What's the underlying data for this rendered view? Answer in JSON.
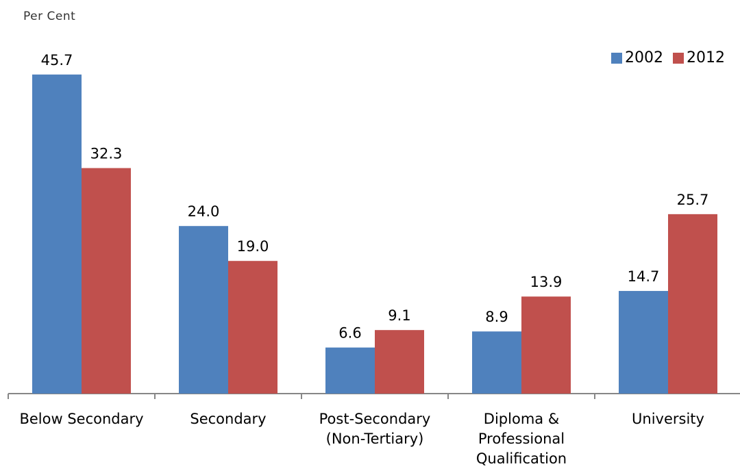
{
  "chart_data": {
    "type": "bar",
    "ylabel": "Per Cent",
    "categories": [
      "Below Secondary",
      "Secondary",
      "Post-Secondary\n(Non-Tertiary)",
      "Diploma &\nProfessional\nQualification",
      "University"
    ],
    "series": [
      {
        "name": "2002",
        "color": "#4F81BD",
        "values": [
          45.7,
          24.0,
          6.6,
          8.9,
          14.7
        ],
        "labels": [
          "45.7",
          "24.0",
          "6.6",
          "8.9",
          "14.7"
        ]
      },
      {
        "name": "2012",
        "color": "#C0504D",
        "values": [
          32.3,
          19.0,
          9.1,
          13.9,
          25.7
        ],
        "labels": [
          "32.3",
          "19.0",
          "9.1",
          "13.9",
          "25.7"
        ]
      }
    ],
    "ylim": [
      0,
      50
    ],
    "grid": false,
    "legend": "top-right"
  }
}
